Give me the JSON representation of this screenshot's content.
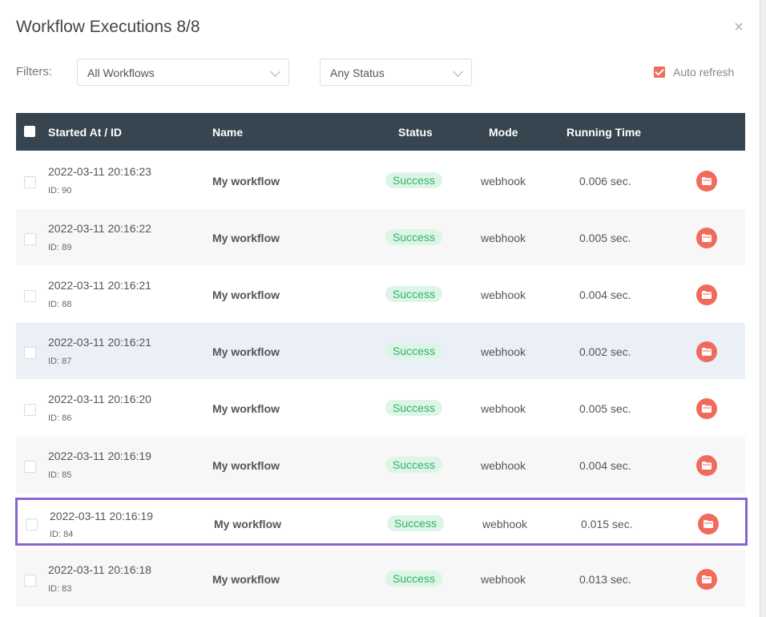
{
  "modal": {
    "title": "Workflow Executions 8/8",
    "close_glyph": "×"
  },
  "filters": {
    "label": "Filters:",
    "workflow_select": "All Workflows",
    "status_select": "Any Status",
    "auto_refresh_label": "Auto refresh",
    "auto_refresh_checked": true
  },
  "table": {
    "headers": {
      "started": "Started At / ID",
      "name": "Name",
      "status": "Status",
      "mode": "Mode",
      "running_time": "Running Time"
    },
    "rows": [
      {
        "time": "2022-03-11 20:16:23",
        "id": "ID: 90",
        "name": "My workflow",
        "status": "Success",
        "mode": "webhook",
        "running_time": "0.006 sec."
      },
      {
        "time": "2022-03-11 20:16:22",
        "id": "ID: 89",
        "name": "My workflow",
        "status": "Success",
        "mode": "webhook",
        "running_time": "0.005 sec."
      },
      {
        "time": "2022-03-11 20:16:21",
        "id": "ID: 88",
        "name": "My workflow",
        "status": "Success",
        "mode": "webhook",
        "running_time": "0.004 sec."
      },
      {
        "time": "2022-03-11 20:16:21",
        "id": "ID: 87",
        "name": "My workflow",
        "status": "Success",
        "mode": "webhook",
        "running_time": "0.002 sec."
      },
      {
        "time": "2022-03-11 20:16:20",
        "id": "ID: 86",
        "name": "My workflow",
        "status": "Success",
        "mode": "webhook",
        "running_time": "0.005 sec."
      },
      {
        "time": "2022-03-11 20:16:19",
        "id": "ID: 85",
        "name": "My workflow",
        "status": "Success",
        "mode": "webhook",
        "running_time": "0.004 sec."
      },
      {
        "time": "2022-03-11 20:16:19",
        "id": "ID: 84",
        "name": "My workflow",
        "status": "Success",
        "mode": "webhook",
        "running_time": "0.015 sec."
      },
      {
        "time": "2022-03-11 20:16:18",
        "id": "ID: 83",
        "name": "My workflow",
        "status": "Success",
        "mode": "webhook",
        "running_time": "0.013 sec."
      }
    ]
  },
  "colors": {
    "header_bg": "#36454f",
    "accent": "#f06b5b",
    "success_bg": "#ddf5e6",
    "success_text": "#2fb36a",
    "highlight_border": "#8a63d2"
  }
}
